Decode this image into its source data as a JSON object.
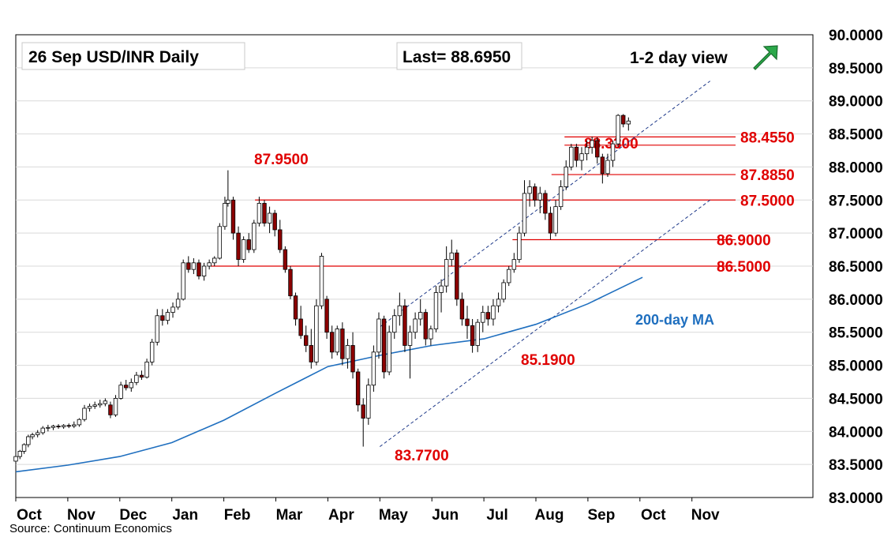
{
  "chart_data": {
    "type": "candlestick",
    "title": "26 Sep  USD/INR  Daily",
    "last_label": "Last= 88.6950",
    "view_label": "1-2 day view",
    "view_direction": "up",
    "source": "Source: Continuum Economics",
    "ylim": [
      83.0,
      90.0
    ],
    "y_ticks": [
      "90.0000",
      "89.5000",
      "89.0000",
      "88.5000",
      "88.0000",
      "87.5000",
      "87.0000",
      "86.5000",
      "86.0000",
      "85.5000",
      "85.0000",
      "84.5000",
      "84.0000",
      "83.5000",
      "83.0000"
    ],
    "x_ticks": [
      "Oct",
      "Nov",
      "Dec",
      "Jan",
      "Feb",
      "Mar",
      "Apr",
      "May",
      "Jun",
      "Jul",
      "Aug",
      "Sep",
      "Oct",
      "Nov"
    ],
    "grid": true,
    "colors": {
      "up_candle": "#ffffff",
      "down_candle": "#8b0000",
      "levels": "#e00000",
      "ma": "#1f6fbf",
      "channel": "#1f3a8a",
      "arrow": "#1f9e3a"
    },
    "levels": [
      {
        "label": "88.4550",
        "value": 88.455
      },
      {
        "label": "88.3300",
        "value": 88.33
      },
      {
        "label": "87.8850",
        "value": 87.885
      },
      {
        "label": "87.5000",
        "value": 87.5
      },
      {
        "label": "86.9000",
        "value": 86.9
      },
      {
        "label": "86.5000",
        "value": 86.5
      }
    ],
    "annotations": [
      {
        "label": "87.9500",
        "month_pos": 4.05,
        "value": 87.95
      },
      {
        "label": "85.1900",
        "month_pos": 9.15,
        "value": 85.19
      },
      {
        "label": "83.7700",
        "month_pos": 7.0,
        "value": 83.77
      }
    ],
    "ma_label": "200-day MA",
    "ma_series": {
      "name": "200-day MA",
      "points": [
        [
          0,
          83.39
        ],
        [
          1,
          83.49
        ],
        [
          2,
          83.62
        ],
        [
          3,
          83.83
        ],
        [
          4,
          84.17
        ],
        [
          5,
          84.58
        ],
        [
          6,
          84.98
        ],
        [
          7,
          85.15
        ],
        [
          8,
          85.3
        ],
        [
          9,
          85.4
        ],
        [
          10,
          85.62
        ],
        [
          11,
          85.93
        ],
        [
          12.05,
          86.33
        ]
      ]
    },
    "channel": {
      "upper": [
        [
          7.0,
          85.58
        ],
        [
          13.35,
          89.3
        ]
      ],
      "lower": [
        [
          7.0,
          83.77
        ],
        [
          13.35,
          87.5
        ]
      ]
    },
    "candles": [
      [
        0.0,
        83.55,
        83.65,
        83.5,
        83.62
      ],
      [
        0.08,
        83.62,
        83.72,
        83.58,
        83.7
      ],
      [
        0.16,
        83.7,
        83.82,
        83.66,
        83.8
      ],
      [
        0.24,
        83.8,
        83.95,
        83.76,
        83.92
      ],
      [
        0.32,
        83.92,
        83.98,
        83.88,
        83.95
      ],
      [
        0.42,
        83.95,
        84.02,
        83.91,
        83.98
      ],
      [
        0.52,
        83.98,
        84.08,
        83.95,
        84.05
      ],
      [
        0.62,
        84.05,
        84.1,
        84.0,
        84.06
      ],
      [
        0.72,
        84.06,
        84.1,
        84.02,
        84.08
      ],
      [
        0.82,
        84.08,
        84.11,
        84.04,
        84.07
      ],
      [
        0.92,
        84.07,
        84.11,
        84.04,
        84.09
      ],
      [
        1.02,
        84.09,
        84.12,
        84.05,
        84.08
      ],
      [
        1.12,
        84.08,
        84.15,
        84.05,
        84.1
      ],
      [
        1.22,
        84.1,
        84.2,
        84.07,
        84.18
      ],
      [
        1.32,
        84.18,
        84.4,
        84.15,
        84.35
      ],
      [
        1.42,
        84.35,
        84.42,
        84.3,
        84.38
      ],
      [
        1.52,
        84.38,
        84.45,
        84.34,
        84.4
      ],
      [
        1.62,
        84.4,
        84.48,
        84.36,
        84.42
      ],
      [
        1.72,
        84.42,
        84.5,
        84.38,
        84.46
      ],
      [
        1.82,
        84.4,
        84.45,
        84.2,
        84.25
      ],
      [
        1.92,
        84.25,
        84.55,
        84.22,
        84.5
      ],
      [
        2.02,
        84.5,
        84.75,
        84.48,
        84.7
      ],
      [
        2.12,
        84.7,
        84.78,
        84.62,
        84.66
      ],
      [
        2.22,
        84.66,
        84.8,
        84.6,
        84.74
      ],
      [
        2.32,
        84.74,
        84.9,
        84.7,
        84.85
      ],
      [
        2.42,
        84.85,
        84.92,
        84.78,
        84.82
      ],
      [
        2.52,
        84.82,
        85.1,
        84.8,
        85.05
      ],
      [
        2.62,
        85.05,
        85.4,
        85.0,
        85.35
      ],
      [
        2.72,
        85.35,
        85.85,
        85.3,
        85.75
      ],
      [
        2.82,
        85.75,
        85.85,
        85.6,
        85.68
      ],
      [
        2.92,
        85.68,
        85.85,
        85.62,
        85.8
      ],
      [
        3.02,
        85.8,
        85.95,
        85.72,
        85.88
      ],
      [
        3.12,
        85.88,
        86.1,
        85.84,
        86.0
      ],
      [
        3.22,
        86.0,
        86.6,
        85.98,
        86.55
      ],
      [
        3.32,
        86.55,
        86.65,
        86.4,
        86.45
      ],
      [
        3.42,
        86.45,
        86.62,
        86.38,
        86.55
      ],
      [
        3.52,
        86.55,
        86.6,
        86.3,
        86.35
      ],
      [
        3.62,
        86.35,
        86.55,
        86.28,
        86.5
      ],
      [
        3.72,
        86.5,
        86.6,
        86.45,
        86.55
      ],
      [
        3.82,
        86.55,
        86.65,
        86.5,
        86.62
      ],
      [
        3.92,
        86.62,
        87.15,
        86.6,
        87.1
      ],
      [
        4.02,
        87.1,
        87.55,
        87.05,
        87.45
      ],
      [
        4.08,
        87.45,
        87.95,
        87.4,
        87.5
      ],
      [
        4.18,
        87.5,
        87.55,
        86.9,
        87.0
      ],
      [
        4.28,
        87.0,
        87.1,
        86.5,
        86.6
      ],
      [
        4.38,
        86.6,
        86.95,
        86.55,
        86.9
      ],
      [
        4.48,
        86.9,
        87.0,
        86.7,
        86.75
      ],
      [
        4.58,
        86.75,
        87.2,
        86.7,
        87.15
      ],
      [
        4.68,
        87.15,
        87.55,
        87.1,
        87.45
      ],
      [
        4.78,
        87.45,
        87.5,
        87.1,
        87.15
      ],
      [
        4.88,
        87.15,
        87.4,
        87.0,
        87.3
      ],
      [
        4.98,
        87.3,
        87.35,
        86.95,
        87.05
      ],
      [
        5.08,
        87.05,
        87.2,
        86.7,
        86.75
      ],
      [
        5.18,
        86.75,
        86.8,
        86.4,
        86.45
      ],
      [
        5.28,
        86.45,
        86.5,
        86.0,
        86.05
      ],
      [
        5.38,
        86.05,
        86.1,
        85.6,
        85.7
      ],
      [
        5.48,
        85.7,
        85.9,
        85.4,
        85.45
      ],
      [
        5.58,
        85.45,
        85.6,
        85.2,
        85.3
      ],
      [
        5.68,
        85.3,
        85.55,
        84.95,
        85.05
      ],
      [
        5.78,
        85.05,
        86.0,
        85.0,
        85.9
      ],
      [
        5.88,
        85.9,
        86.7,
        85.85,
        86.65
      ],
      [
        5.98,
        86.0,
        86.05,
        85.4,
        85.5
      ],
      [
        6.08,
        85.5,
        85.6,
        85.1,
        85.2
      ],
      [
        6.18,
        85.2,
        85.6,
        85.15,
        85.55
      ],
      [
        6.28,
        85.55,
        85.65,
        85.0,
        85.1
      ],
      [
        6.38,
        85.1,
        85.4,
        84.95,
        85.3
      ],
      [
        6.48,
        85.3,
        85.5,
        84.8,
        84.9
      ],
      [
        6.58,
        84.9,
        84.95,
        84.3,
        84.4
      ],
      [
        6.68,
        84.4,
        84.5,
        83.77,
        84.2
      ],
      [
        6.78,
        84.2,
        84.8,
        84.1,
        84.7
      ],
      [
        6.88,
        84.7,
        85.3,
        84.6,
        85.2
      ],
      [
        6.98,
        85.2,
        85.8,
        85.1,
        85.7
      ],
      [
        7.08,
        85.7,
        85.75,
        84.8,
        84.9
      ],
      [
        7.18,
        84.9,
        85.6,
        84.85,
        85.5
      ],
      [
        7.28,
        85.5,
        85.85,
        85.4,
        85.75
      ],
      [
        7.38,
        85.75,
        86.1,
        85.6,
        85.9
      ],
      [
        7.48,
        85.9,
        86.0,
        85.2,
        85.3
      ],
      [
        7.58,
        85.3,
        85.6,
        84.8,
        85.5
      ],
      [
        7.68,
        85.5,
        85.8,
        85.4,
        85.7
      ],
      [
        7.78,
        85.7,
        86.0,
        85.6,
        85.8
      ],
      [
        7.88,
        85.8,
        85.85,
        85.3,
        85.4
      ],
      [
        7.98,
        85.4,
        85.6,
        85.3,
        85.55
      ],
      [
        8.08,
        85.55,
        86.2,
        85.5,
        86.1
      ],
      [
        8.18,
        86.1,
        86.3,
        85.8,
        86.2
      ],
      [
        8.28,
        86.2,
        86.8,
        86.1,
        86.6
      ],
      [
        8.38,
        86.6,
        86.9,
        86.5,
        86.7
      ],
      [
        8.48,
        86.7,
        86.75,
        85.9,
        86.0
      ],
      [
        8.58,
        86.0,
        86.1,
        85.6,
        85.7
      ],
      [
        8.68,
        85.7,
        85.9,
        85.4,
        85.6
      ],
      [
        8.78,
        85.6,
        85.7,
        85.19,
        85.3
      ],
      [
        8.88,
        85.3,
        85.7,
        85.2,
        85.65
      ],
      [
        8.98,
        85.65,
        85.9,
        85.5,
        85.8
      ],
      [
        9.08,
        85.8,
        85.9,
        85.6,
        85.7
      ],
      [
        9.18,
        85.7,
        86.0,
        85.6,
        85.9
      ],
      [
        9.28,
        85.9,
        86.1,
        85.8,
        86.0
      ],
      [
        9.38,
        86.0,
        86.3,
        85.95,
        86.25
      ],
      [
        9.48,
        86.25,
        86.5,
        86.2,
        86.45
      ],
      [
        9.58,
        86.45,
        86.7,
        86.4,
        86.6
      ],
      [
        9.68,
        86.6,
        87.1,
        86.55,
        87.0
      ],
      [
        9.78,
        87.0,
        87.8,
        86.95,
        87.6
      ],
      [
        9.88,
        87.6,
        87.8,
        87.4,
        87.7
      ],
      [
        9.98,
        87.7,
        87.75,
        87.4,
        87.5
      ],
      [
        10.08,
        87.5,
        87.7,
        87.3,
        87.6
      ],
      [
        10.18,
        87.6,
        87.65,
        87.2,
        87.3
      ],
      [
        10.28,
        87.3,
        87.4,
        86.9,
        87.0
      ],
      [
        10.38,
        87.0,
        87.5,
        86.95,
        87.4
      ],
      [
        10.48,
        87.4,
        87.8,
        87.35,
        87.7
      ],
      [
        10.58,
        87.7,
        88.1,
        87.65,
        88.0
      ],
      [
        10.68,
        88.0,
        88.35,
        87.95,
        88.3
      ],
      [
        10.78,
        88.3,
        88.35,
        88.0,
        88.1
      ],
      [
        10.88,
        88.1,
        88.3,
        87.95,
        88.2
      ],
      [
        10.98,
        88.2,
        88.4,
        88.1,
        88.3
      ],
      [
        11.08,
        88.3,
        88.46,
        88.2,
        88.4
      ],
      [
        11.18,
        88.4,
        88.45,
        88.05,
        88.15
      ],
      [
        11.28,
        88.15,
        88.2,
        87.75,
        87.9
      ],
      [
        11.38,
        87.9,
        88.2,
        87.85,
        88.1
      ],
      [
        11.48,
        88.1,
        88.4,
        88.0,
        88.35
      ],
      [
        11.58,
        88.35,
        88.8,
        88.3,
        88.78
      ],
      [
        11.68,
        88.78,
        88.8,
        88.6,
        88.65
      ],
      [
        11.78,
        88.65,
        88.75,
        88.55,
        88.695
      ]
    ]
  }
}
